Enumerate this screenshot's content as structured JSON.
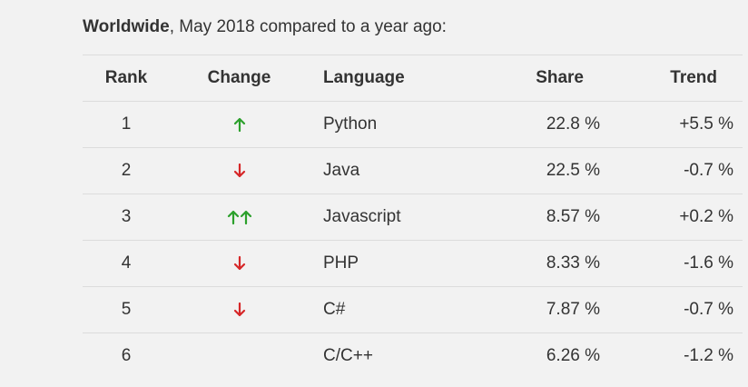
{
  "caption": {
    "region": "Worldwide",
    "rest": ", May 2018 compared to a year ago:"
  },
  "columns": {
    "rank": "Rank",
    "change": "Change",
    "language": "Language",
    "share": "Share",
    "trend": "Trend"
  },
  "colors": {
    "up": "#2ca02c",
    "down": "#d62728"
  },
  "rows": [
    {
      "rank": "1",
      "change": [
        "up"
      ],
      "language": "Python",
      "share": "22.8 %",
      "trend": "+5.5 %"
    },
    {
      "rank": "2",
      "change": [
        "down"
      ],
      "language": "Java",
      "share": "22.5 %",
      "trend": "-0.7 %"
    },
    {
      "rank": "3",
      "change": [
        "up",
        "up"
      ],
      "language": "Javascript",
      "share": "8.57 %",
      "trend": "+0.2 %"
    },
    {
      "rank": "4",
      "change": [
        "down"
      ],
      "language": "PHP",
      "share": "8.33 %",
      "trend": "-1.6 %"
    },
    {
      "rank": "5",
      "change": [
        "down"
      ],
      "language": "C#",
      "share": "7.87 %",
      "trend": "-0.7 %"
    },
    {
      "rank": "6",
      "change": [],
      "language": "C/C++",
      "share": "6.26 %",
      "trend": "-1.2 %"
    }
  ]
}
